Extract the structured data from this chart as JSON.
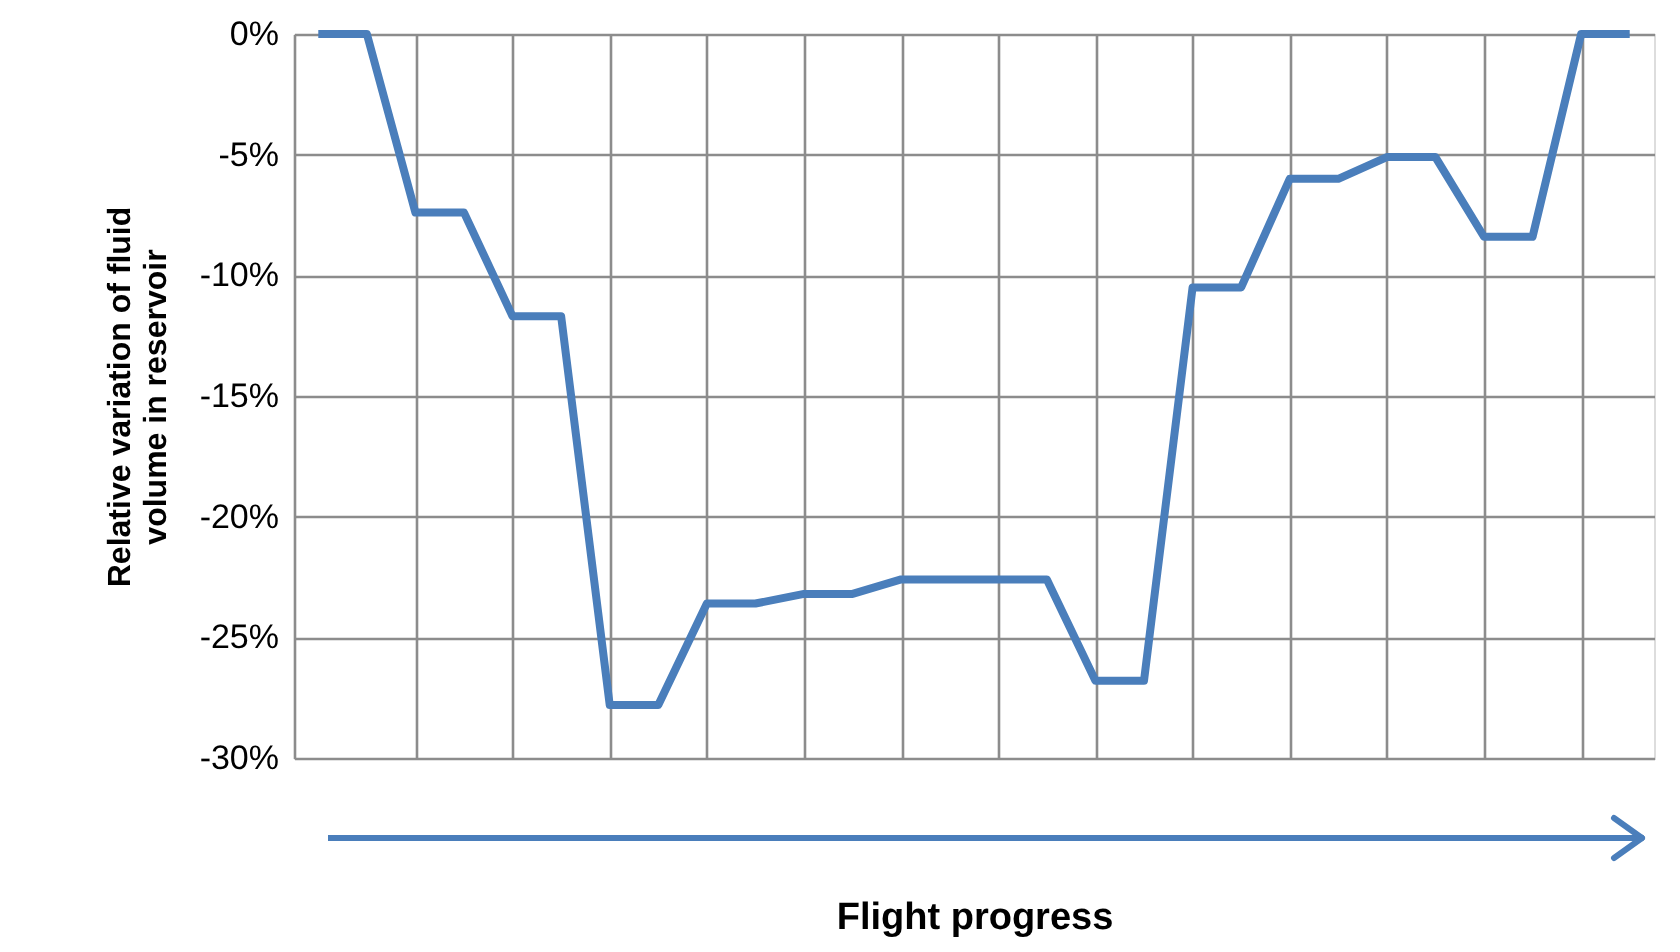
{
  "chart_data": {
    "type": "line",
    "xlabel": "Flight progress",
    "ylabel": "Relative variation of fluid volume in reservoir",
    "categories": [
      null,
      null,
      null,
      null,
      null,
      null,
      null,
      null,
      null,
      null,
      null,
      null,
      null,
      null,
      null,
      null,
      null,
      null,
      null,
      null,
      null,
      null,
      null,
      null,
      null,
      null,
      null,
      null
    ],
    "series": [
      {
        "color": "#4a7ebb",
        "values": [
          0,
          0,
          -7.4,
          -7.4,
          -11.7,
          -11.7,
          -27.8,
          -27.8,
          -23.6,
          -23.6,
          -23.2,
          -23.2,
          -22.6,
          -22.6,
          -22.6,
          -22.6,
          -26.8,
          -26.8,
          -10.5,
          -10.5,
          -6.0,
          -6.0,
          -5.1,
          -5.1,
          -8.4,
          -8.4,
          0,
          0
        ]
      }
    ],
    "ylim": [
      -30,
      0
    ],
    "yticks": [
      {
        "value": -30,
        "label": "-30%"
      },
      {
        "value": -25,
        "label": "-25%"
      },
      {
        "value": -20,
        "label": "-20%"
      },
      {
        "value": -15,
        "label": "-15%"
      },
      {
        "value": -10,
        "label": "-10%"
      },
      {
        "value": -5,
        "label": "-5%"
      },
      {
        "value": 0,
        "label": "0%"
      }
    ],
    "grid": true,
    "marker": "none",
    "line_style": "solid",
    "tick_labels": "y"
  }
}
